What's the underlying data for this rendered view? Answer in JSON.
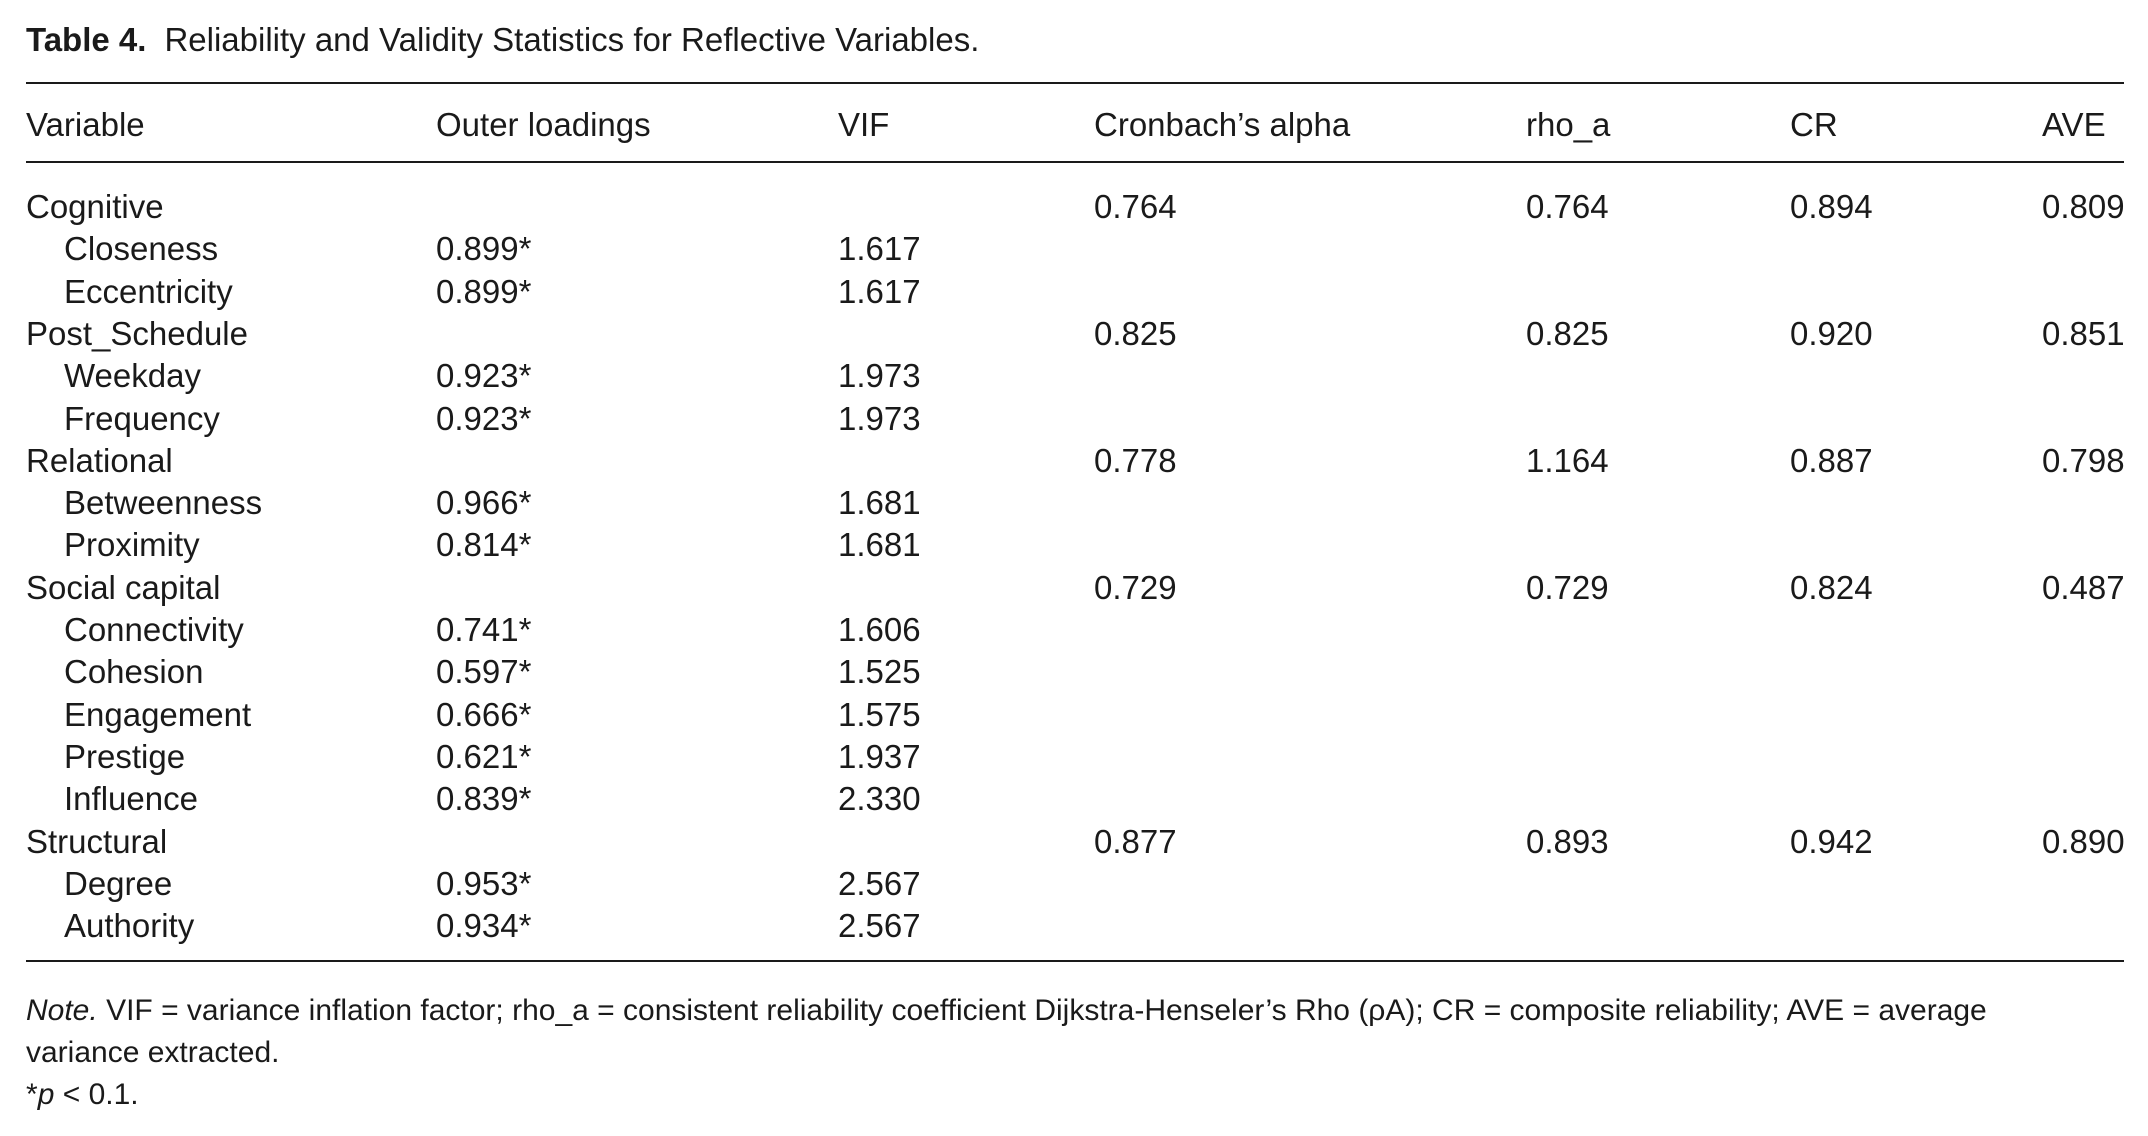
{
  "caption": {
    "label": "Table 4.",
    "title": "Reliability and Validity Statistics for Reflective Variables."
  },
  "headers": [
    "Variable",
    "Outer loadings",
    "VIF",
    "Cronbach’s alpha",
    "rho_a",
    "CR",
    "AVE"
  ],
  "rows": [
    {
      "kind": "group",
      "cells": [
        "Cognitive",
        "",
        "",
        "0.764",
        "0.764",
        "0.894",
        "0.809"
      ]
    },
    {
      "kind": "item",
      "cells": [
        "Closeness",
        "0.899*",
        "1.617",
        "",
        "",
        "",
        ""
      ]
    },
    {
      "kind": "item",
      "cells": [
        "Eccentricity",
        "0.899*",
        "1.617",
        "",
        "",
        "",
        ""
      ]
    },
    {
      "kind": "group",
      "cells": [
        "Post_Schedule",
        "",
        "",
        "0.825",
        "0.825",
        "0.920",
        "0.851"
      ]
    },
    {
      "kind": "item",
      "cells": [
        "Weekday",
        "0.923*",
        "1.973",
        "",
        "",
        "",
        ""
      ]
    },
    {
      "kind": "item",
      "cells": [
        "Frequency",
        "0.923*",
        "1.973",
        "",
        "",
        "",
        ""
      ]
    },
    {
      "kind": "group",
      "cells": [
        "Relational",
        "",
        "",
        "0.778",
        "1.164",
        "0.887",
        "0.798"
      ]
    },
    {
      "kind": "item",
      "cells": [
        "Betweenness",
        "0.966*",
        "1.681",
        "",
        "",
        "",
        ""
      ]
    },
    {
      "kind": "item",
      "cells": [
        "Proximity",
        "0.814*",
        "1.681",
        "",
        "",
        "",
        ""
      ]
    },
    {
      "kind": "group",
      "cells": [
        "Social capital",
        "",
        "",
        "0.729",
        "0.729",
        "0.824",
        "0.487"
      ]
    },
    {
      "kind": "item",
      "cells": [
        "Connectivity",
        "0.741*",
        "1.606",
        "",
        "",
        "",
        ""
      ]
    },
    {
      "kind": "item",
      "cells": [
        "Cohesion",
        "0.597*",
        "1.525",
        "",
        "",
        "",
        ""
      ]
    },
    {
      "kind": "item",
      "cells": [
        "Engagement",
        "0.666*",
        "1.575",
        "",
        "",
        "",
        ""
      ]
    },
    {
      "kind": "item",
      "cells": [
        "Prestige",
        "0.621*",
        "1.937",
        "",
        "",
        "",
        ""
      ]
    },
    {
      "kind": "item",
      "cells": [
        "Influence",
        "0.839*",
        "2.330",
        "",
        "",
        "",
        ""
      ]
    },
    {
      "kind": "group",
      "cells": [
        "Structural",
        "",
        "",
        "0.877",
        "0.893",
        "0.942",
        "0.890"
      ]
    },
    {
      "kind": "item",
      "cells": [
        "Degree",
        "0.953*",
        "2.567",
        "",
        "",
        "",
        ""
      ]
    },
    {
      "kind": "item",
      "cells": [
        "Authority",
        "0.934*",
        "2.567",
        "",
        "",
        "",
        ""
      ]
    }
  ],
  "note": {
    "label": "Note.",
    "text": "VIF = variance inflation factor; rho_a = consistent reliability coefficient Dijkstra-Henseler’s Rho (ρA); CR = composite reliability; AVE = average variance extracted."
  },
  "significance": {
    "star": "*",
    "p": "p",
    "rest": " < 0.1."
  }
}
